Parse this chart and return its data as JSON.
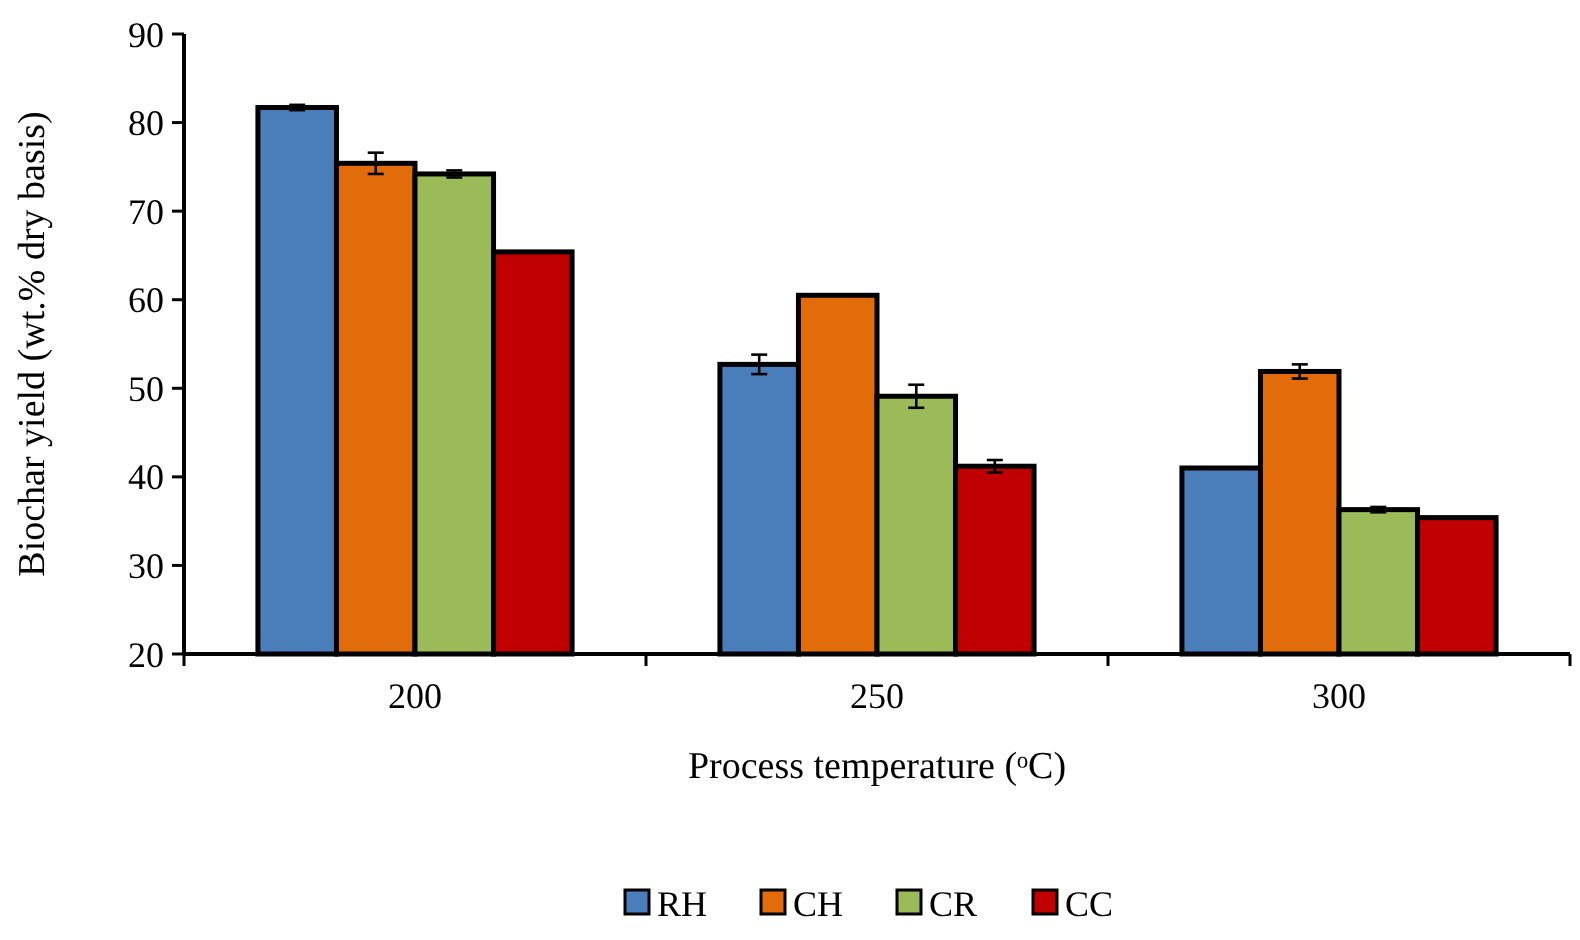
{
  "chart_data": {
    "type": "bar",
    "xlabel": "Process temperature (ᵒC)",
    "ylabel": "Biochar yield (wt.% dry basis)",
    "categories": [
      "200",
      "250",
      "300"
    ],
    "series": [
      {
        "name": "RH",
        "color": "#4a7ebb",
        "values": [
          81.7,
          52.7,
          41.0
        ],
        "errors": [
          0.3,
          1.1,
          null
        ]
      },
      {
        "name": "CH",
        "color": "#e36c0a",
        "values": [
          75.4,
          60.5,
          51.9
        ],
        "errors": [
          1.2,
          null,
          0.8
        ]
      },
      {
        "name": "CR",
        "color": "#9bbb59",
        "values": [
          74.2,
          49.1,
          36.3
        ],
        "errors": [
          0.4,
          1.3,
          0.3
        ]
      },
      {
        "name": "CC",
        "color": "#c00000",
        "values": [
          65.4,
          41.2,
          35.4
        ],
        "errors": [
          null,
          0.7,
          null
        ]
      }
    ],
    "ylim": [
      20,
      90
    ],
    "yticks": [
      20,
      30,
      40,
      50,
      60,
      70,
      80,
      90
    ],
    "grid": false,
    "legend": "bottom"
  }
}
